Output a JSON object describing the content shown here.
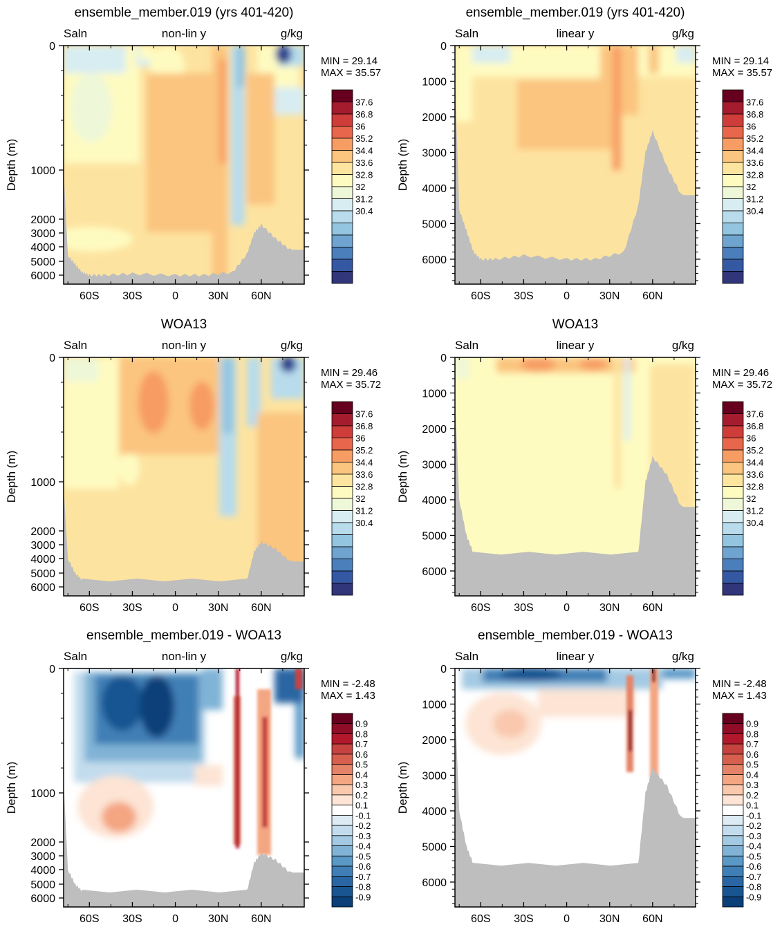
{
  "common": {
    "variable": "Saln",
    "units": "g/kg",
    "ylabel": "Depth (m)",
    "x_ticks": [
      "60S",
      "30S",
      "0",
      "30N",
      "60N"
    ],
    "x_tick_values": [
      -60,
      -30,
      0,
      30,
      60
    ],
    "xlim": [
      -78,
      90
    ],
    "y_ticks_nonlin": [
      "0",
      "1000",
      "2000",
      "3000",
      "4000",
      "5000",
      "6000"
    ],
    "y_ticks_linear": [
      "0",
      "1000",
      "2000",
      "3000",
      "4000",
      "5000",
      "6000"
    ],
    "y_tick_values": [
      0,
      1000,
      2000,
      3000,
      4000,
      5000,
      6000
    ],
    "linear_ylim": [
      0,
      6700
    ],
    "land_color": "#bebebe"
  },
  "colorbars": {
    "salinity": {
      "labels": [
        "37.6",
        "36.8",
        "36",
        "35.2",
        "34.4",
        "33.6",
        "32.8",
        "32",
        "31.2",
        "30.4"
      ],
      "colors": [
        "#67001f",
        "#a51c2e",
        "#cf3d3a",
        "#e8664b",
        "#f79c63",
        "#fbc47f",
        "#fde5a0",
        "#fefbc1",
        "#eef7d8",
        "#d8edf2",
        "#b8dcec",
        "#93c4e0",
        "#6ea4cf",
        "#4a7fbb",
        "#3558a3",
        "#31357a"
      ]
    },
    "difference": {
      "labels": [
        "0.9",
        "0.8",
        "0.7",
        "0.6",
        "0.5",
        "0.4",
        "0.3",
        "0.2",
        "0.1",
        "-0.1",
        "-0.2",
        "-0.3",
        "-0.4",
        "-0.5",
        "-0.6",
        "-0.7",
        "-0.8",
        "-0.9"
      ],
      "colors": [
        "#67001f",
        "#8f0d27",
        "#b2182b",
        "#c7433f",
        "#d6604d",
        "#e58368",
        "#f4a582",
        "#f9c8ad",
        "#fde4d4",
        "#ffffff",
        "#dcebf4",
        "#c2dced",
        "#a4cae3",
        "#80b3d6",
        "#5a98c6",
        "#3f7fb5",
        "#2a66a3",
        "#185591",
        "#0a3f78"
      ]
    }
  },
  "panels": [
    {
      "section_title": "ensemble_member.019 (yrs 401-420)",
      "mode": "non-lin y",
      "min_label": "MIN =",
      "min_value": "29.14",
      "max_label": "MAX =",
      "max_value": "35.57"
    },
    {
      "section_title": "ensemble_member.019 (yrs 401-420)",
      "mode": "linear y",
      "min_label": "MIN =",
      "min_value": "29.14",
      "max_label": "MAX =",
      "max_value": "35.57"
    },
    {
      "section_title": "WOA13",
      "mode": "non-lin y",
      "min_label": "MIN =",
      "min_value": "29.46",
      "max_label": "MAX =",
      "max_value": "35.72"
    },
    {
      "section_title": "WOA13",
      "mode": "linear y",
      "min_label": "MIN =",
      "min_value": "29.46",
      "max_label": "MAX =",
      "max_value": "35.72"
    },
    {
      "section_title": "ensemble_member.019 - WOA13",
      "mode": "non-lin y",
      "min_label": "MIN =",
      "min_value": "-2.48",
      "max_label": "MAX =",
      "max_value": "1.43"
    },
    {
      "section_title": "ensemble_member.019 - WOA13",
      "mode": "linear y",
      "min_label": "MIN =",
      "min_value": "-2.48",
      "max_label": "MAX =",
      "max_value": "1.43"
    }
  ],
  "chart_data": [
    {
      "type": "heatmap",
      "title": "ensemble_member.019 (yrs 401-420)",
      "variable": "Saln",
      "units": "g/kg",
      "y_axis": "non-lin y",
      "ylabel": "Depth (m)",
      "xlim": [
        -78,
        90
      ],
      "ylim": [
        6600,
        0
      ],
      "y_scale": "non-linear",
      "min": 29.14,
      "max": 35.57,
      "bathymetry_depth_m": [
        [
          -78,
          1000
        ],
        [
          -75,
          4600
        ],
        [
          -70,
          5200
        ],
        [
          -65,
          5800
        ],
        [
          -60,
          6000
        ],
        [
          -50,
          6000
        ],
        [
          -30,
          5900
        ],
        [
          0,
          6000
        ],
        [
          20,
          6000
        ],
        [
          40,
          5800
        ],
        [
          50,
          4500
        ],
        [
          55,
          3000
        ],
        [
          60,
          2400
        ],
        [
          70,
          3400
        ],
        [
          80,
          4200
        ],
        [
          90,
          4200
        ]
      ],
      "features": [
        {
          "lat_range": [
            -78,
            40
          ],
          "depth_range": [
            500,
            6000
          ],
          "value_range": "35.2-36"
        },
        {
          "lat_range": [
            -20,
            40
          ],
          "depth_range": [
            0,
            600
          ],
          "value_range": "35.2-36.8"
        },
        {
          "lat_range": [
            40,
            60
          ],
          "depth_range": [
            0,
            800
          ],
          "value_range": "32-34.4"
        },
        {
          "lat_range": [
            75,
            80
          ],
          "depth_range": [
            0,
            100
          ],
          "value_range": "29-31.2"
        }
      ]
    },
    {
      "type": "heatmap",
      "title": "ensemble_member.019 (yrs 401-420)",
      "variable": "Saln",
      "units": "g/kg",
      "y_axis": "linear y",
      "ylabel": "Depth (m)",
      "xlim": [
        -78,
        90
      ],
      "ylim": [
        6700,
        0
      ],
      "y_scale": "linear",
      "min": 29.14,
      "max": 35.57,
      "bathymetry_depth_m": [
        [
          -78,
          900
        ],
        [
          -75,
          4600
        ],
        [
          -70,
          5200
        ],
        [
          -65,
          5800
        ],
        [
          -60,
          6000
        ],
        [
          -50,
          6000
        ],
        [
          -30,
          5900
        ],
        [
          0,
          6000
        ],
        [
          20,
          6000
        ],
        [
          40,
          5800
        ],
        [
          50,
          4500
        ],
        [
          55,
          3000
        ],
        [
          60,
          2400
        ],
        [
          70,
          3400
        ],
        [
          80,
          4200
        ],
        [
          90,
          4200
        ]
      ],
      "features": [
        {
          "lat_range": [
            -78,
            60
          ],
          "depth_range": [
            300,
            6000
          ],
          "value_range": "34.4-35.2"
        },
        {
          "lat_range": [
            -40,
            30
          ],
          "depth_range": [
            300,
            3000
          ],
          "value_range": "35.2-36"
        }
      ]
    },
    {
      "type": "heatmap",
      "title": "WOA13",
      "variable": "Saln",
      "units": "g/kg",
      "y_axis": "non-lin y",
      "ylabel": "Depth (m)",
      "xlim": [
        -78,
        90
      ],
      "ylim": [
        6600,
        0
      ],
      "y_scale": "non-linear",
      "min": 29.46,
      "max": 35.72,
      "bathymetry_depth_m": [
        [
          -78,
          1100
        ],
        [
          -75,
          4000
        ],
        [
          -70,
          5000
        ],
        [
          -65,
          5500
        ],
        [
          50,
          5500
        ],
        [
          55,
          3500
        ],
        [
          60,
          2800
        ],
        [
          70,
          3300
        ],
        [
          80,
          4200
        ],
        [
          90,
          4200
        ]
      ],
      "features": [
        {
          "lat_range": [
            -78,
            40
          ],
          "depth_range": [
            600,
            5500
          ],
          "value_range": "34.4-35.2"
        },
        {
          "lat_range": [
            -40,
            20
          ],
          "depth_range": [
            0,
            800
          ],
          "value_range": "35.2-36.8"
        },
        {
          "lat_range": [
            40,
            60
          ],
          "depth_range": [
            0,
            1000
          ],
          "value_range": "32-34.4"
        },
        {
          "lat_range": [
            75,
            90
          ],
          "depth_range": [
            0,
            100
          ],
          "value_range": "29.5-31.2"
        }
      ]
    },
    {
      "type": "heatmap",
      "title": "WOA13",
      "variable": "Saln",
      "units": "g/kg",
      "y_axis": "linear y",
      "ylabel": "Depth (m)",
      "xlim": [
        -78,
        90
      ],
      "ylim": [
        6700,
        0
      ],
      "y_scale": "linear",
      "min": 29.46,
      "max": 35.72,
      "bathymetry_depth_m": [
        [
          -78,
          1100
        ],
        [
          -75,
          4000
        ],
        [
          -70,
          5000
        ],
        [
          -65,
          5500
        ],
        [
          50,
          5500
        ],
        [
          55,
          3500
        ],
        [
          60,
          2800
        ],
        [
          70,
          3300
        ],
        [
          80,
          4200
        ],
        [
          90,
          4200
        ]
      ],
      "features": [
        {
          "lat_range": [
            -78,
            60
          ],
          "depth_range": [
            300,
            5500
          ],
          "value_range": "34.4-35.2"
        },
        {
          "lat_range": [
            -40,
            50
          ],
          "depth_range": [
            0,
            300
          ],
          "value_range": "35.2-36"
        }
      ]
    },
    {
      "type": "heatmap",
      "title": "ensemble_member.019 - WOA13",
      "variable": "Saln",
      "units": "g/kg",
      "y_axis": "non-lin y",
      "ylabel": "Depth (m)",
      "xlim": [
        -78,
        90
      ],
      "ylim": [
        6600,
        0
      ],
      "y_scale": "non-linear",
      "min": -2.48,
      "max": 1.43,
      "bathymetry_depth_m": [
        [
          -78,
          900
        ],
        [
          -75,
          4000
        ],
        [
          -70,
          5000
        ],
        [
          -65,
          5500
        ],
        [
          50,
          5500
        ],
        [
          55,
          3500
        ],
        [
          60,
          2800
        ],
        [
          70,
          3300
        ],
        [
          80,
          4200
        ],
        [
          90,
          4200
        ]
      ],
      "features": [
        {
          "lat_range": [
            -60,
            30
          ],
          "depth_range": [
            0,
            800
          ],
          "value_range": "-0.9 to -0.2"
        },
        {
          "lat_range": [
            -60,
            -20
          ],
          "depth_range": [
            900,
            2000
          ],
          "value_range": "0.1-0.4"
        },
        {
          "lat_range": [
            40,
            60
          ],
          "depth_range": [
            0,
            2000
          ],
          "value_range": "0.2-0.9"
        },
        {
          "lat_range": [
            60,
            80
          ],
          "depth_range": [
            0,
            200
          ],
          "value_range": "-0.9 to -0.4"
        }
      ]
    },
    {
      "type": "heatmap",
      "title": "ensemble_member.019 - WOA13",
      "variable": "Saln",
      "units": "g/kg",
      "y_axis": "linear y",
      "ylabel": "Depth (m)",
      "xlim": [
        -78,
        90
      ],
      "ylim": [
        6700,
        0
      ],
      "y_scale": "linear",
      "min": -2.48,
      "max": 1.43,
      "bathymetry_depth_m": [
        [
          -78,
          900
        ],
        [
          -75,
          4000
        ],
        [
          -70,
          5000
        ],
        [
          -65,
          5500
        ],
        [
          50,
          5500
        ],
        [
          55,
          3500
        ],
        [
          60,
          2800
        ],
        [
          70,
          3300
        ],
        [
          80,
          4200
        ],
        [
          90,
          4200
        ]
      ],
      "features": [
        {
          "lat_range": [
            -60,
            30
          ],
          "depth_range": [
            0,
            400
          ],
          "value_range": "-0.9 to -0.2"
        },
        {
          "lat_range": [
            -60,
            -20
          ],
          "depth_range": [
            700,
            2700
          ],
          "value_range": "0.1-0.3"
        },
        {
          "lat_range": [
            40,
            60
          ],
          "depth_range": [
            0,
            2200
          ],
          "value_range": "0.2-0.9"
        }
      ]
    }
  ]
}
